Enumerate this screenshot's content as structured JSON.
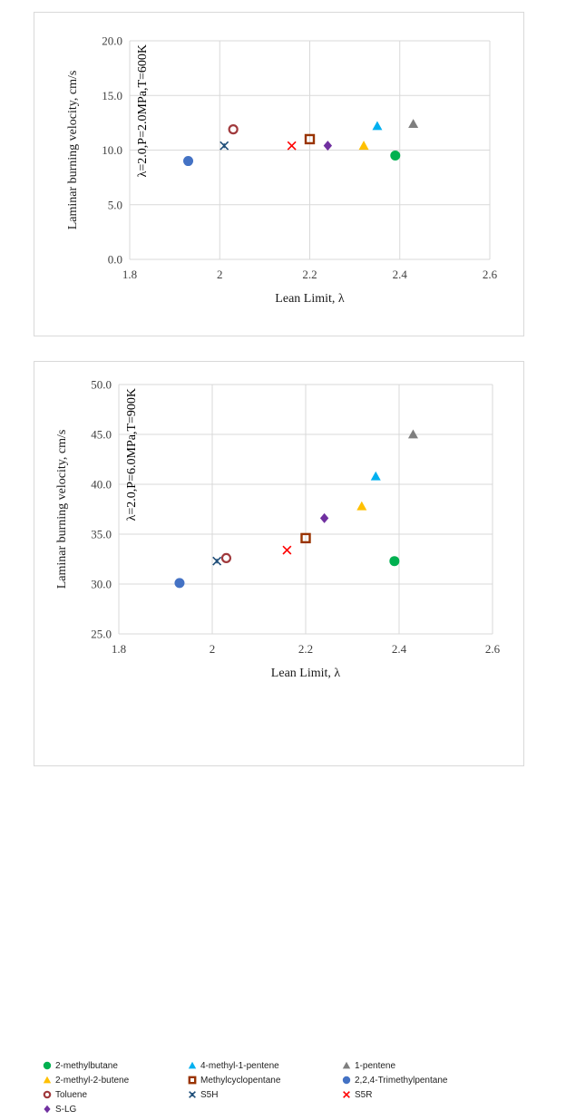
{
  "chart_data": [
    {
      "type": "scatter",
      "title": "",
      "annotation": "λ=2.0,P=2.0MPa,T=600K",
      "xlabel": "Lean Limit, λ",
      "ylabel": "Laminar burning velocity, cm/s",
      "xlim": [
        1.8,
        2.6
      ],
      "ylim": [
        0.0,
        20.0
      ],
      "xticks": [
        "1.8",
        "2",
        "2.2",
        "2.4",
        "2.6"
      ],
      "yticks": [
        "0.0",
        "5.0",
        "10.0",
        "15.0",
        "20.0"
      ],
      "series": [
        {
          "name": "2-methylbutane",
          "x": 2.39,
          "y": 9.5
        },
        {
          "name": "4-methyl-1-pentene",
          "x": 2.35,
          "y": 12.2
        },
        {
          "name": "1-pentene",
          "x": 2.43,
          "y": 12.4
        },
        {
          "name": "2-methyl-2-butene",
          "x": 2.32,
          "y": 10.4
        },
        {
          "name": "Methylcyclopentane",
          "x": 2.2,
          "y": 11.0
        },
        {
          "name": "2,2,4-Trimethylpentane",
          "x": 1.93,
          "y": 9.0
        },
        {
          "name": "Toluene",
          "x": 2.03,
          "y": 11.9
        },
        {
          "name": "S5H",
          "x": 2.01,
          "y": 10.4
        },
        {
          "name": "S5R",
          "x": 2.16,
          "y": 10.4
        },
        {
          "name": "S-LG",
          "x": 2.24,
          "y": 10.4
        }
      ]
    },
    {
      "type": "scatter",
      "title": "",
      "annotation": "λ=2.0,P=6.0MPa,T=900K",
      "xlabel": "Lean Limit, λ",
      "ylabel": "Laminar burning velocity, cm/s",
      "xlim": [
        1.8,
        2.6
      ],
      "ylim": [
        25.0,
        50.0
      ],
      "xticks": [
        "1.8",
        "2",
        "2.2",
        "2.4",
        "2.6"
      ],
      "yticks": [
        "25.0",
        "30.0",
        "35.0",
        "40.0",
        "45.0",
        "50.0"
      ],
      "series": [
        {
          "name": "2-methylbutane",
          "x": 2.39,
          "y": 32.3
        },
        {
          "name": "4-methyl-1-pentene",
          "x": 2.35,
          "y": 40.8
        },
        {
          "name": "1-pentene",
          "x": 2.43,
          "y": 45.0
        },
        {
          "name": "2-methyl-2-butene",
          "x": 2.32,
          "y": 37.8
        },
        {
          "name": "Methylcyclopentane",
          "x": 2.2,
          "y": 34.6
        },
        {
          "name": "2,2,4-Trimethylpentane",
          "x": 1.93,
          "y": 30.1
        },
        {
          "name": "Toluene",
          "x": 2.03,
          "y": 32.6
        },
        {
          "name": "S5H",
          "x": 2.01,
          "y": 32.3
        },
        {
          "name": "S5R",
          "x": 2.16,
          "y": 33.4
        },
        {
          "name": "S-LG",
          "x": 2.24,
          "y": 36.6
        }
      ]
    }
  ],
  "legend": [
    {
      "name": "2-methylbutane",
      "marker": "circle",
      "color": "#00b050"
    },
    {
      "name": "4-methyl-1-pentene",
      "marker": "triangle",
      "color": "#00b0f0"
    },
    {
      "name": "1-pentene",
      "marker": "triangle",
      "color": "#7f7f7f"
    },
    {
      "name": "2-methyl-2-butene",
      "marker": "triangle",
      "color": "#ffc000"
    },
    {
      "name": "Methylcyclopentane",
      "marker": "square-open",
      "color": "#993300"
    },
    {
      "name": "2,2,4-Trimethylpentane",
      "marker": "circle",
      "color": "#4472c4"
    },
    {
      "name": "Toluene",
      "marker": "circle-open",
      "color": "#a0393c"
    },
    {
      "name": "S5H",
      "marker": "star-x",
      "color": "#1f4e79"
    },
    {
      "name": "S5R",
      "marker": "x",
      "color": "#ff0000"
    },
    {
      "name": "S-LG",
      "marker": "diamond",
      "color": "#7030a0"
    }
  ]
}
